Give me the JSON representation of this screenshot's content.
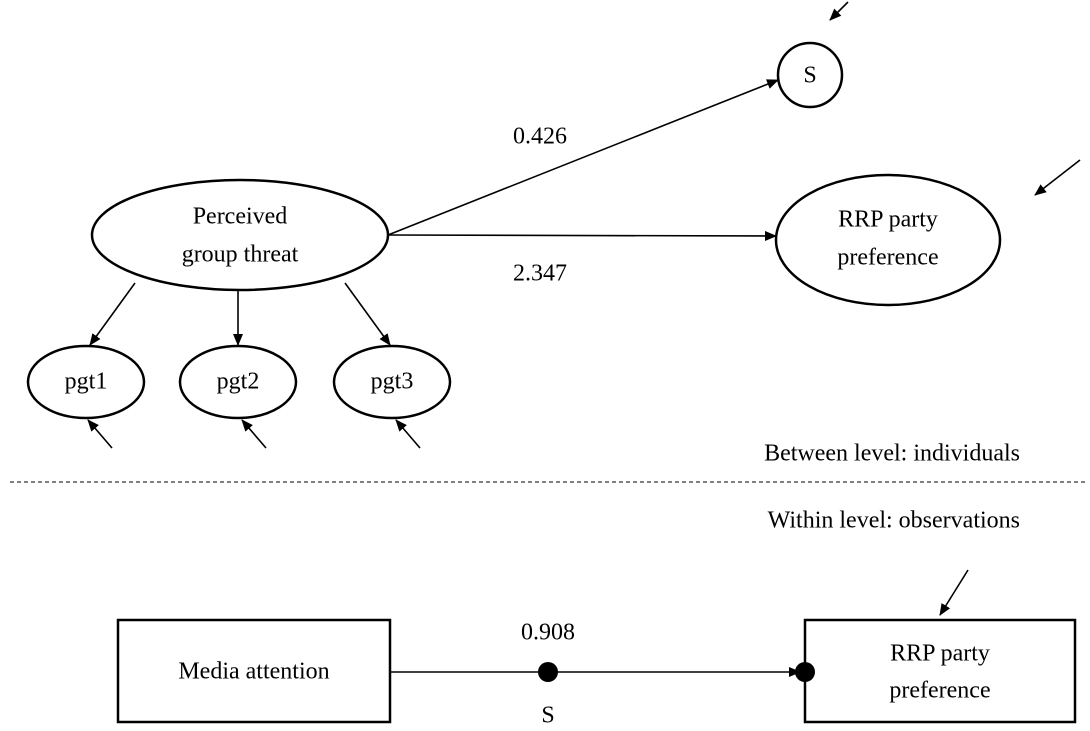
{
  "nodes": [
    {
      "id": "S",
      "lines": [
        "S"
      ]
    },
    {
      "id": "pgt",
      "lines": [
        "Perceived",
        "group threat"
      ]
    },
    {
      "id": "rrp_between",
      "lines": [
        "RRP party",
        "preference"
      ]
    },
    {
      "id": "pgt1",
      "lines": [
        "pgt1"
      ]
    },
    {
      "id": "pgt2",
      "lines": [
        "pgt2"
      ]
    },
    {
      "id": "pgt3",
      "lines": [
        "pgt3"
      ]
    },
    {
      "id": "media",
      "lines": [
        "Media attention"
      ]
    },
    {
      "id": "rrp_within",
      "lines": [
        "RRP party",
        "preference"
      ]
    }
  ],
  "edges": [
    {
      "label": "0.426"
    },
    {
      "label": "2.347"
    },
    {
      "label": "0.908",
      "slope_label": "S"
    }
  ],
  "levels": {
    "between": "Between level: individuals",
    "within": "Within level: observations"
  }
}
